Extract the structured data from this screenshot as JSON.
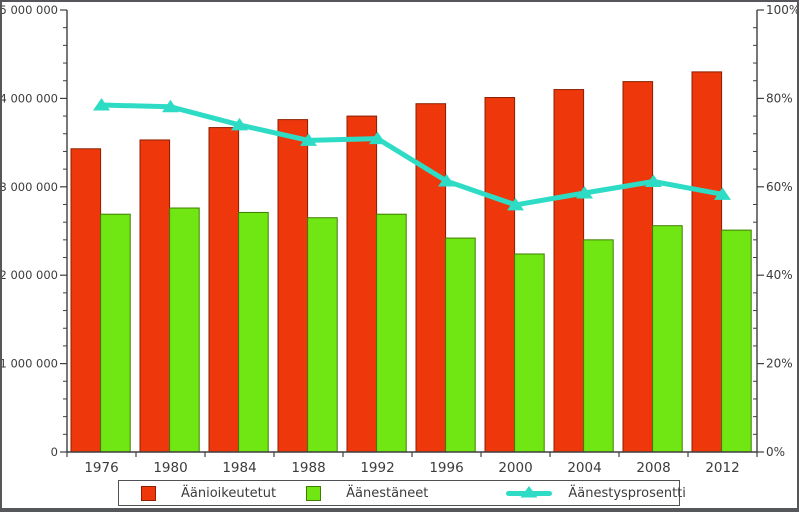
{
  "chart_data": {
    "type": "bar+line",
    "title": "",
    "categories": [
      "1976",
      "1980",
      "1984",
      "1988",
      "1992",
      "1996",
      "2000",
      "2004",
      "2008",
      "2012"
    ],
    "series": [
      {
        "name": "Äänioikeutetut",
        "type": "bar",
        "axis": "left",
        "color": "#ee370b",
        "border_color": "#8c1f00",
        "values": [
          3430000,
          3530000,
          3670000,
          3760000,
          3800000,
          3940000,
          4010000,
          4100000,
          4190000,
          4300000
        ]
      },
      {
        "name": "Äänestäneet",
        "type": "bar",
        "axis": "left",
        "color": "#70e613",
        "border_color": "#3f7d00",
        "values": [
          2690000,
          2760000,
          2710000,
          2650000,
          2690000,
          2420000,
          2240000,
          2400000,
          2560000,
          2510000
        ]
      },
      {
        "name": "Äänestysprosentti",
        "type": "line",
        "axis": "right",
        "color": "#2edcc6",
        "marker": "triangle-up",
        "values": [
          78.5,
          78.1,
          74.0,
          70.5,
          70.9,
          61.3,
          55.9,
          58.6,
          61.2,
          58.3
        ]
      }
    ],
    "left_axis": {
      "min": 0,
      "max": 5000000,
      "major_step": 1000000,
      "minor_step": 200000,
      "tick_labels": [
        "0",
        "1 000 000",
        "2 000 000",
        "3 000 000",
        "4 000 000",
        "5 000 000"
      ]
    },
    "right_axis": {
      "min": 0,
      "max": 100,
      "major_step": 20,
      "minor_step": 4,
      "tick_labels": [
        "0%",
        "20%",
        "40%",
        "60%",
        "80%",
        "100%"
      ]
    },
    "grid": false,
    "legend_position": "bottom",
    "axis_color": "#3f3f3f",
    "background": "#ffffff"
  }
}
